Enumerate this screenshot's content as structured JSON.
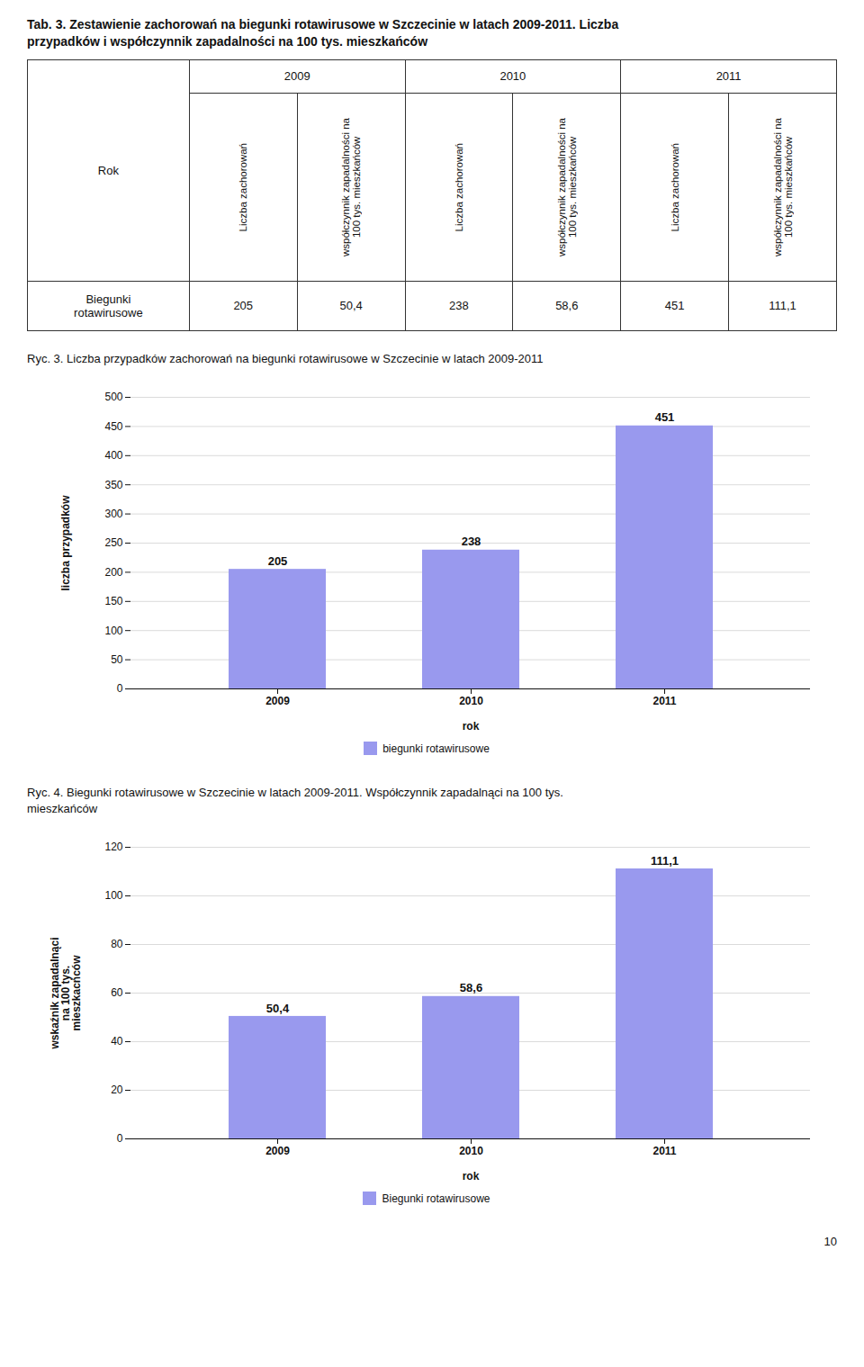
{
  "title": "Tab. 3. Zestawienie zachorowań na biegunki rotawirusowe w Szczecinie w latach 2009-2011. Liczba\nprzypadków i współczynnik zapadalności na 100 tys. mieszkańców",
  "table": {
    "corner": "Rok",
    "groups": [
      "2009",
      "2010",
      "2011"
    ],
    "subheaders": [
      "Liczba zachorowań",
      "współczynnik zapadalności na\n100 tys. mieszkańców"
    ],
    "row": [
      "Biegunki\nrotawirusowe",
      "205",
      "50,4",
      "238",
      "58,6",
      "451",
      "111,1"
    ]
  },
  "chart_data": [
    {
      "type": "bar",
      "title": "Ryc. 3. Liczba przypadków zachorowań na biegunki rotawirusowe w Szczecinie w latach 2009-2011",
      "categories": [
        "2009",
        "2010",
        "2011"
      ],
      "series": [
        {
          "name": "biegunki rotawirusowe",
          "color": "#9999ee",
          "values": [
            205,
            238,
            451
          ]
        }
      ],
      "xlabel": "rok",
      "ylabel": "liczba przypadków",
      "ylim": [
        0,
        500
      ],
      "yticks": [
        0,
        50,
        100,
        150,
        200,
        250,
        300,
        350,
        400,
        450,
        500
      ],
      "grid": true,
      "legend": "bottom",
      "data_labels": true
    },
    {
      "type": "bar",
      "title": "Ryc. 4. Biegunki rotawirusowe w Szczecinie w latach 2009-2011. Współczynnik zapadalnąci na 100 tys.\nmieszkańców",
      "categories": [
        "2009",
        "2010",
        "2011"
      ],
      "series": [
        {
          "name": "Biegunki rotawirusowe",
          "color": "#9999ee",
          "values": [
            50.4,
            58.6,
            111.1
          ],
          "value_labels": [
            "50,4",
            "58,6",
            "111,1"
          ]
        }
      ],
      "xlabel": "rok",
      "ylabel": "wskaźnik zapadalnąci\nna 100 tys.\nmieszkacńców",
      "ylim": [
        0,
        120
      ],
      "yticks": [
        0,
        20,
        40,
        60,
        80,
        100,
        120
      ],
      "grid": true,
      "legend": "bottom",
      "data_labels": true
    }
  ],
  "footer": "10"
}
